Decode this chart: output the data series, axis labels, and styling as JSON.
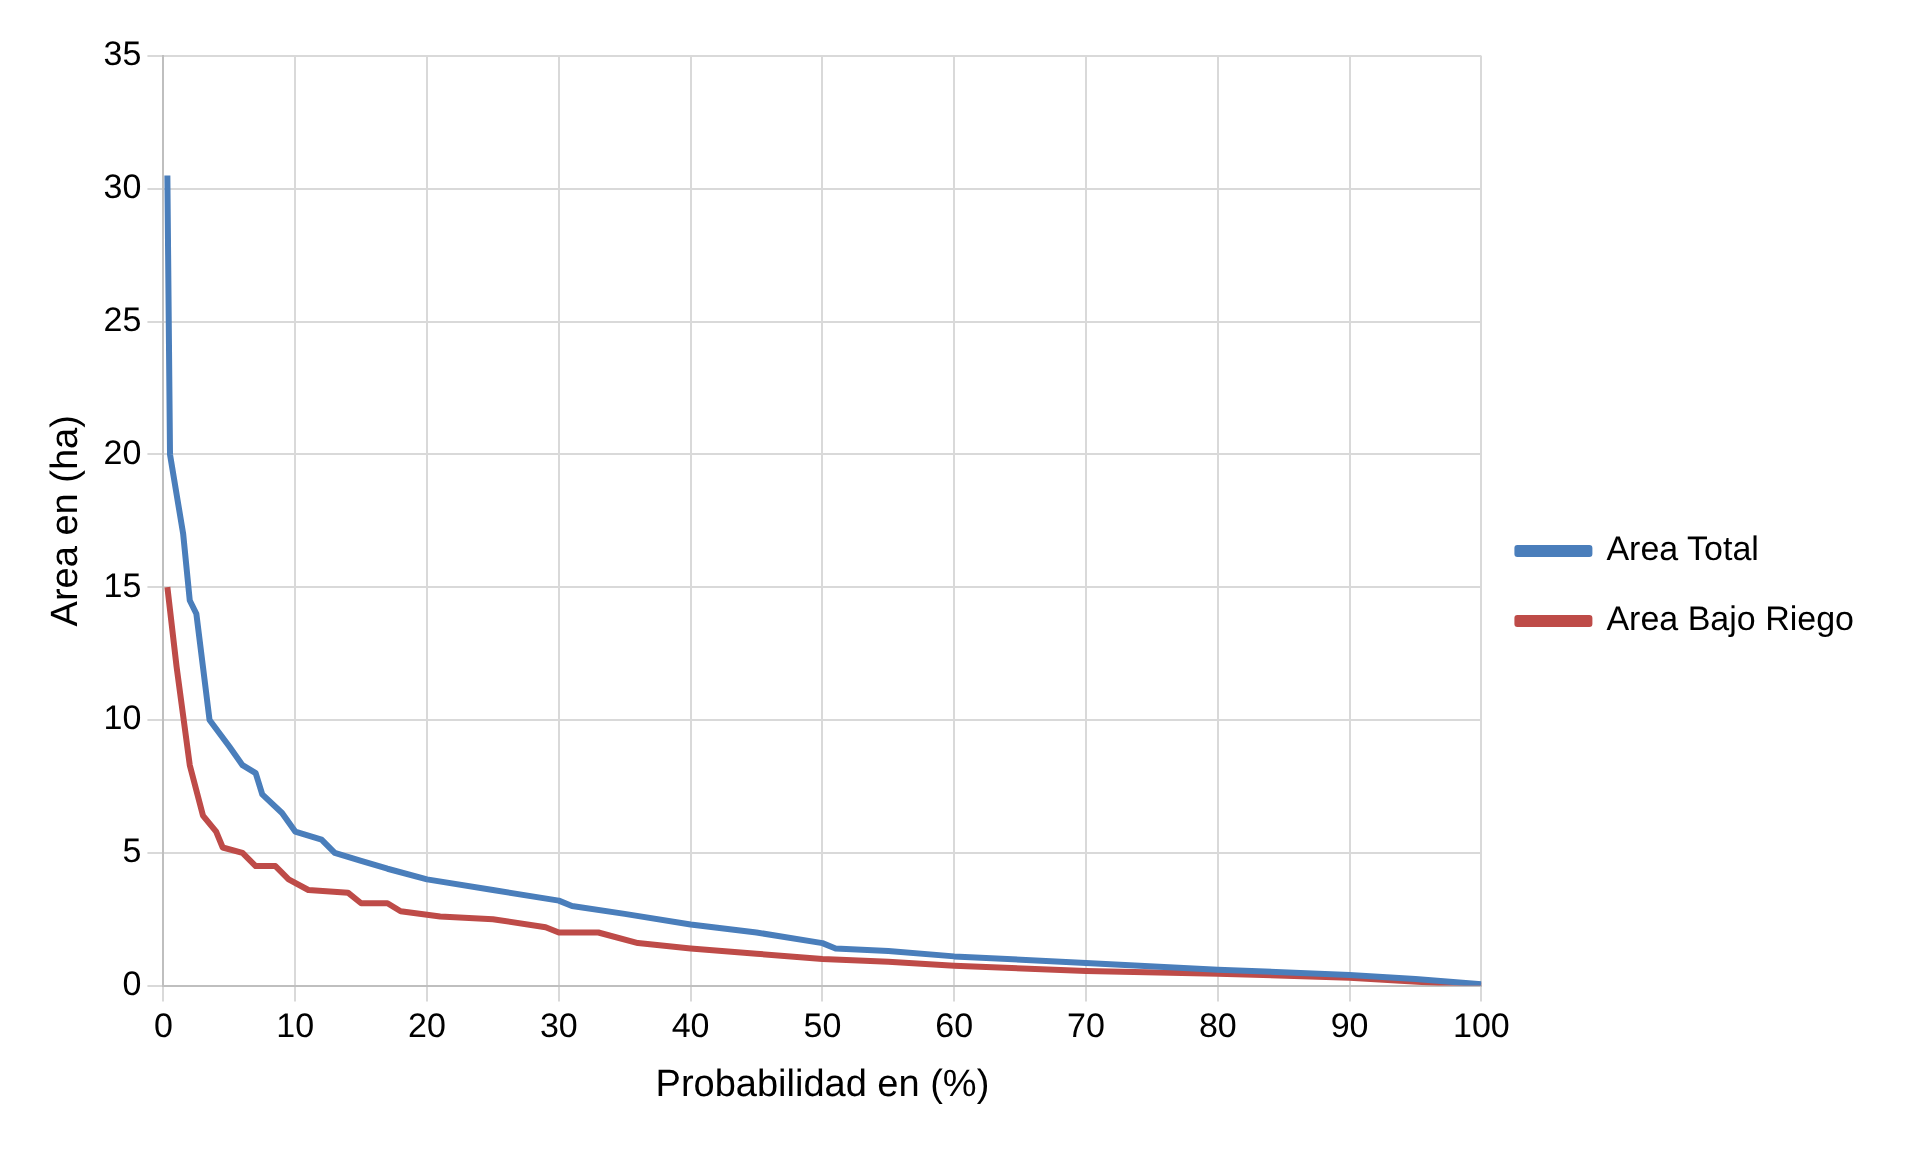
{
  "chart_data": {
    "type": "line",
    "xlabel": "Probabilidad en (%)",
    "ylabel": "Area en (ha)",
    "xlim": [
      0,
      100
    ],
    "xticks": [
      0,
      10,
      20,
      30,
      40,
      50,
      60,
      70,
      80,
      90,
      100
    ],
    "ylim": [
      0,
      35
    ],
    "yticks": [
      0,
      5,
      10,
      15,
      20,
      25,
      30,
      35
    ],
    "grid": true,
    "legend": "right",
    "marker": "none",
    "line_style": "solid",
    "series": [
      {
        "name": "Area Total",
        "color": "#4a7ebb",
        "x": [
          0.3,
          0.5,
          1.5,
          2,
          2.5,
          3,
          3.5,
          5,
          6,
          7,
          7.5,
          9,
          10,
          12,
          13,
          15,
          17,
          20,
          25,
          30,
          31,
          35,
          40,
          45,
          50,
          51,
          55,
          60,
          70,
          80,
          90,
          95,
          100
        ],
        "values": [
          30.5,
          20,
          17,
          14.5,
          14,
          12,
          10,
          9,
          8.3,
          8,
          7.2,
          6.5,
          5.8,
          5.5,
          5,
          4.7,
          4.4,
          4,
          3.6,
          3.2,
          3,
          2.7,
          2.3,
          2,
          1.6,
          1.4,
          1.3,
          1.1,
          0.85,
          0.6,
          0.4,
          0.25,
          0.05
        ]
      },
      {
        "name": "Area Bajo Riego",
        "color": "#be4b48",
        "x": [
          0.3,
          1,
          2,
          3,
          4,
          4.5,
          6,
          7,
          8.5,
          9.5,
          11,
          14,
          15,
          17,
          18,
          21,
          25,
          29,
          30,
          33,
          36,
          40,
          45,
          50,
          55,
          60,
          70,
          80,
          90,
          100
        ],
        "values": [
          15,
          12,
          8.3,
          6.4,
          5.8,
          5.2,
          5,
          4.5,
          4.5,
          4,
          3.6,
          3.5,
          3.1,
          3.1,
          2.8,
          2.6,
          2.5,
          2.2,
          2,
          2,
          1.6,
          1.4,
          1.2,
          1,
          0.9,
          0.75,
          0.55,
          0.45,
          0.3,
          0
        ]
      }
    ]
  }
}
